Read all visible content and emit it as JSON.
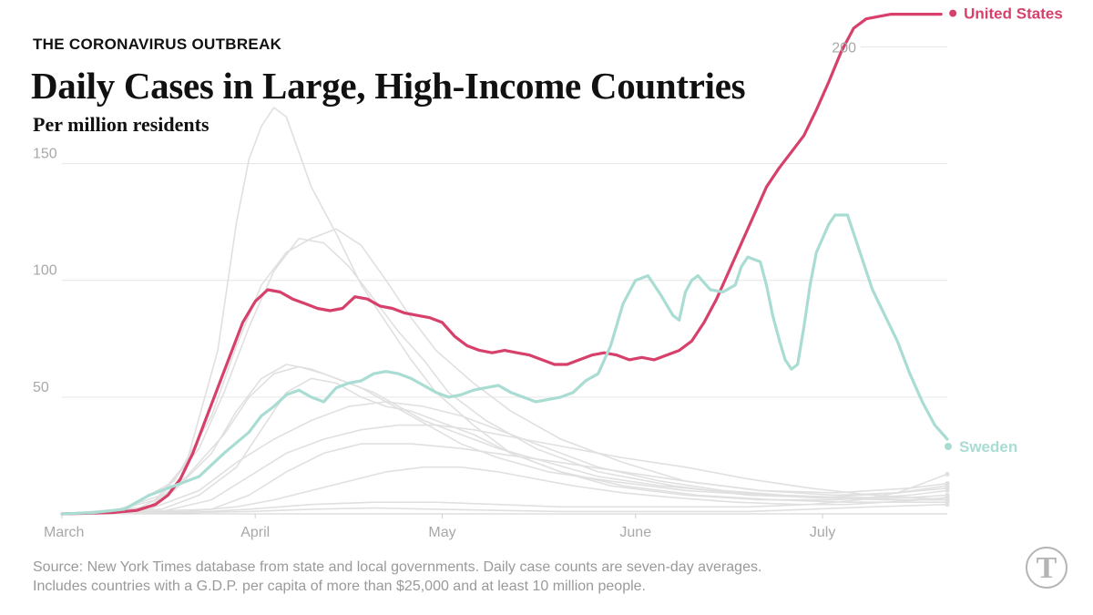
{
  "header": {
    "kicker": "THE CORONAVIRUS OUTBREAK",
    "title": "Daily Cases in Large, High-Income Countries",
    "subtitle": "Per million residents"
  },
  "footer": {
    "source_line1": "Source: New York Times database from state and local governments. Daily case counts are seven-day averages.",
    "source_line2": "Includes countries with a G.D.P. per capita of more than $25,000 and at least 10 million people.",
    "logo_text": "T"
  },
  "chart_data": {
    "type": "line",
    "title": "Daily Cases in Large, High-Income Countries",
    "ylabel": "Per million residents",
    "xlabel": "",
    "x_unit": "days since March 1",
    "xlim": [
      0,
      142
    ],
    "ylim": [
      0,
      215
    ],
    "grid": true,
    "y_ticks": [
      {
        "value": 50,
        "label": "50"
      },
      {
        "value": 100,
        "label": "100"
      },
      {
        "value": 150,
        "label": "150"
      },
      {
        "value": 200,
        "label": "200"
      }
    ],
    "x_ticks": [
      {
        "day": 0,
        "label": "March"
      },
      {
        "day": 31,
        "label": "April"
      },
      {
        "day": 61,
        "label": "May"
      },
      {
        "day": 92,
        "label": "June"
      },
      {
        "day": 122,
        "label": "July"
      }
    ],
    "colors": {
      "highlight_us": "#d6406a",
      "highlight_sweden": "#a9dcd2",
      "background_series": "#e0e0e0",
      "grid": "#e6e6e6",
      "tick_text": "#a8a8a8"
    },
    "highlighted": [
      {
        "name": "United States",
        "label": "United States",
        "x": [
          0,
          8,
          12,
          15,
          17,
          19,
          21,
          23,
          25,
          27,
          29,
          31,
          33,
          35,
          37,
          39,
          40,
          41,
          43,
          45,
          47,
          49,
          51,
          53,
          55,
          57,
          59,
          61,
          63,
          65,
          67,
          69,
          71,
          73,
          75,
          77,
          79,
          81,
          83,
          85,
          87,
          89,
          91,
          93,
          95,
          97,
          99,
          101,
          103,
          105,
          107,
          109,
          111,
          113,
          115,
          117,
          119,
          121,
          123,
          125,
          127,
          129,
          131,
          133,
          135,
          137,
          139,
          141
        ],
        "values": [
          0,
          0.5,
          1.5,
          4,
          8,
          15,
          26,
          40,
          54,
          68,
          82,
          91,
          96,
          95,
          92,
          90,
          89,
          88,
          87,
          88,
          93,
          92,
          89,
          88,
          86,
          85,
          84,
          82,
          76,
          72,
          70,
          69,
          70,
          69,
          68,
          66,
          64,
          64,
          66,
          68,
          69,
          68,
          66,
          67,
          66,
          68,
          70,
          74,
          82,
          92,
          104,
          116,
          128,
          140,
          148,
          155,
          162,
          173,
          185,
          198,
          208,
          212,
          213,
          214,
          214,
          214,
          214,
          214
        ]
      },
      {
        "name": "Sweden",
        "label": "Sweden",
        "x": [
          0,
          5,
          10,
          14,
          18,
          22,
          26,
          30,
          32,
          34,
          36,
          38,
          40,
          42,
          44,
          46,
          48,
          50,
          52,
          54,
          56,
          58,
          60,
          62,
          64,
          66,
          68,
          70,
          72,
          74,
          76,
          78,
          80,
          82,
          84,
          86,
          88,
          90,
          92,
          94,
          96,
          98,
          99,
          100,
          101,
          102,
          104,
          106,
          108,
          109,
          110,
          112,
          113,
          114,
          115,
          116,
          117,
          118,
          119,
          120,
          121,
          122,
          123,
          124,
          126,
          128,
          130,
          132,
          134,
          136,
          138,
          140,
          142
        ],
        "values": [
          0,
          0.5,
          2,
          8,
          12,
          16,
          26,
          35,
          42,
          46,
          51,
          53,
          50,
          48,
          54,
          56,
          57,
          60,
          61,
          60,
          58,
          55,
          52,
          50,
          51,
          53,
          54,
          55,
          52,
          50,
          48,
          49,
          50,
          52,
          57,
          60,
          72,
          90,
          100,
          102,
          94,
          85,
          83,
          95,
          100,
          102,
          96,
          95,
          98,
          106,
          110,
          108,
          98,
          85,
          75,
          66,
          62,
          64,
          80,
          98,
          112,
          118,
          124,
          128,
          128,
          112,
          96,
          85,
          74,
          60,
          48,
          38,
          32
        ]
      }
    ],
    "background_series": [
      {
        "name": "country 1",
        "x": [
          0,
          8,
          15,
          20,
          25,
          28,
          30,
          32,
          34,
          36,
          38,
          40,
          44,
          48,
          52,
          56,
          60,
          66,
          72,
          80,
          88,
          100,
          112,
          124,
          136,
          142
        ],
        "values": [
          0,
          1,
          6,
          22,
          70,
          125,
          152,
          166,
          174,
          170,
          155,
          140,
          120,
          98,
          82,
          66,
          52,
          38,
          26,
          18,
          12,
          8,
          6,
          6,
          8,
          10
        ]
      },
      {
        "name": "country 2",
        "x": [
          0,
          10,
          18,
          24,
          28,
          32,
          36,
          40,
          44,
          48,
          52,
          56,
          60,
          66,
          72,
          80,
          90,
          100,
          112,
          124,
          136,
          142
        ],
        "values": [
          0,
          2,
          14,
          42,
          72,
          98,
          112,
          118,
          122,
          115,
          100,
          84,
          70,
          56,
          44,
          32,
          22,
          14,
          10,
          9,
          11,
          13
        ]
      },
      {
        "name": "country 3",
        "x": [
          0,
          8,
          16,
          22,
          26,
          30,
          34,
          38,
          42,
          46,
          50,
          54,
          58,
          62,
          68,
          76,
          86,
          98,
          110,
          122,
          134,
          142
        ],
        "values": [
          0,
          1,
          8,
          28,
          52,
          80,
          104,
          118,
          116,
          106,
          92,
          78,
          66,
          52,
          40,
          28,
          18,
          12,
          8,
          7,
          9,
          11
        ]
      },
      {
        "name": "country 4",
        "x": [
          0,
          12,
          18,
          24,
          28,
          32,
          36,
          40,
          44,
          48,
          52,
          56,
          60,
          64,
          70,
          78,
          88,
          100,
          112,
          124,
          136,
          142
        ],
        "values": [
          0,
          2,
          10,
          26,
          44,
          58,
          64,
          62,
          58,
          54,
          48,
          42,
          36,
          30,
          24,
          18,
          14,
          10,
          8,
          7,
          6,
          6
        ]
      },
      {
        "name": "country 5",
        "x": [
          0,
          14,
          20,
          26,
          30,
          34,
          38,
          42,
          46,
          50,
          54,
          58,
          64,
          70,
          78,
          86,
          96,
          108,
          120,
          132,
          142
        ],
        "values": [
          0,
          3,
          16,
          34,
          50,
          60,
          63,
          60,
          56,
          52,
          46,
          40,
          34,
          28,
          22,
          16,
          12,
          9,
          7,
          6,
          6
        ]
      },
      {
        "name": "country 6",
        "x": [
          0,
          14,
          22,
          28,
          34,
          40,
          46,
          52,
          58,
          64,
          70,
          78,
          86,
          96,
          106,
          116,
          126,
          136,
          142
        ],
        "values": [
          0,
          2,
          10,
          22,
          32,
          40,
          46,
          48,
          46,
          42,
          36,
          28,
          20,
          14,
          10,
          8,
          7,
          7,
          8
        ]
      },
      {
        "name": "country 7",
        "x": [
          0,
          16,
          22,
          28,
          32,
          36,
          40,
          44,
          48,
          52,
          56,
          60,
          66,
          72,
          80,
          90,
          102,
          114,
          126,
          136,
          142
        ],
        "values": [
          0,
          2,
          8,
          20,
          36,
          52,
          58,
          56,
          50,
          46,
          44,
          40,
          34,
          26,
          18,
          12,
          8,
          6,
          5,
          5,
          5
        ]
      },
      {
        "name": "country 8",
        "x": [
          0,
          16,
          24,
          30,
          36,
          42,
          48,
          54,
          60,
          66,
          72,
          78,
          84,
          90,
          100,
          110,
          120,
          130,
          142
        ],
        "values": [
          0,
          1,
          6,
          16,
          26,
          32,
          36,
          38,
          38,
          36,
          33,
          30,
          27,
          24,
          20,
          15,
          11,
          8,
          6
        ]
      },
      {
        "name": "country 9",
        "x": [
          0,
          20,
          28,
          34,
          40,
          46,
          52,
          58,
          64,
          70,
          76,
          82,
          90,
          98,
          108,
          118,
          126,
          132,
          138,
          142
        ],
        "values": [
          0,
          1,
          3,
          6,
          10,
          14,
          18,
          20,
          20,
          18,
          15,
          12,
          9,
          7,
          5,
          4,
          4,
          5,
          6,
          7
        ]
      },
      {
        "name": "country 10",
        "x": [
          0,
          20,
          30,
          40,
          50,
          60,
          70,
          80,
          90,
          100,
          110,
          120,
          128,
          134,
          138,
          142
        ],
        "values": [
          0,
          0.5,
          2,
          4,
          5,
          5,
          4,
          3,
          3,
          3,
          3,
          4,
          6,
          9,
          13,
          17
        ]
      },
      {
        "name": "country 11",
        "x": [
          0,
          20,
          30,
          40,
          50,
          60,
          70,
          80,
          90,
          100,
          110,
          120,
          130,
          142
        ],
        "values": [
          0,
          0.5,
          1,
          2,
          2.5,
          2,
          1.5,
          1,
          1,
          1,
          1,
          2,
          3,
          4
        ]
      },
      {
        "name": "country 12",
        "x": [
          0,
          24,
          30,
          36,
          42,
          48,
          56,
          64,
          72,
          80,
          90,
          100,
          112,
          124,
          134,
          142
        ],
        "values": [
          0,
          2,
          8,
          18,
          26,
          30,
          30,
          28,
          25,
          22,
          18,
          14,
          10,
          8,
          9,
          12
        ]
      }
    ]
  }
}
